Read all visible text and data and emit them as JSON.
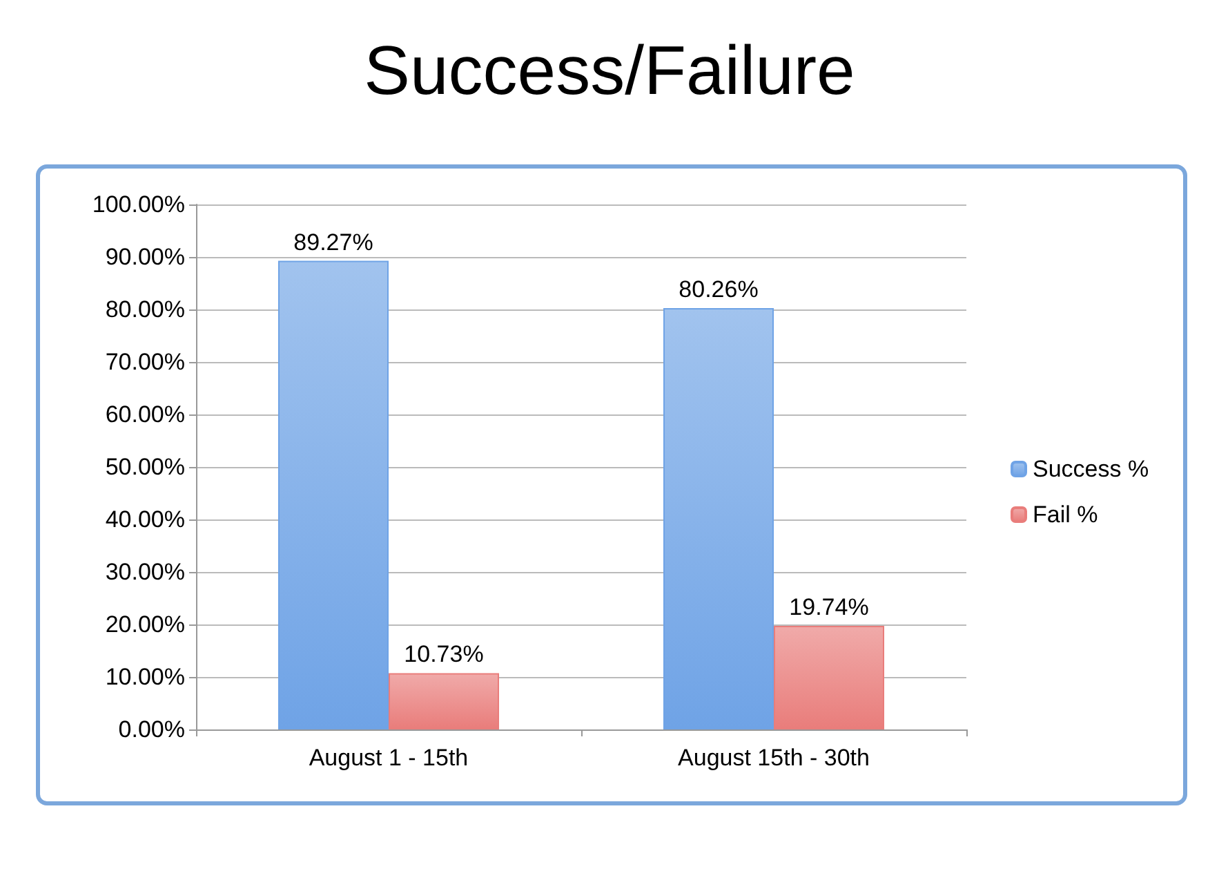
{
  "chart_data": {
    "type": "bar",
    "title": "Success/Failure",
    "categories": [
      "August 1 - 15th",
      "August 15th - 30th"
    ],
    "series": [
      {
        "name": "Success %",
        "color": "#6fa3e6",
        "values": [
          89.27,
          80.26
        ],
        "value_labels": [
          "89.27%",
          "80.26%"
        ]
      },
      {
        "name": "Fail %",
        "color": "#e97d7b",
        "values": [
          10.73,
          19.74
        ],
        "value_labels": [
          "10.73%",
          "19.74%"
        ]
      }
    ],
    "ylim": [
      0,
      100
    ],
    "yticks": [
      {
        "value": 0,
        "label": "0.00%"
      },
      {
        "value": 10,
        "label": "10.00%"
      },
      {
        "value": 20,
        "label": "20.00%"
      },
      {
        "value": 30,
        "label": "30.00%"
      },
      {
        "value": 40,
        "label": "40.00%"
      },
      {
        "value": 50,
        "label": "50.00%"
      },
      {
        "value": 60,
        "label": "60.00%"
      },
      {
        "value": 70,
        "label": "70.00%"
      },
      {
        "value": 80,
        "label": "80.00%"
      },
      {
        "value": 90,
        "label": "90.00%"
      },
      {
        "value": 100,
        "label": "100.00%"
      }
    ],
    "grid": "y",
    "legend": "right"
  }
}
